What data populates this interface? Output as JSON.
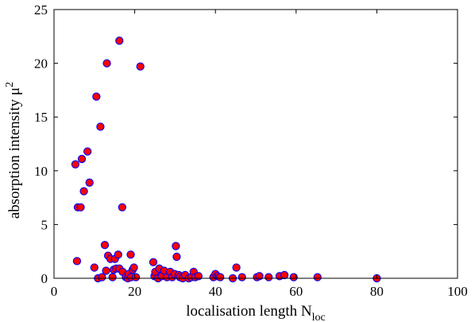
{
  "chart_data": {
    "type": "scatter",
    "title": "",
    "xlabel": "localisation length  N",
    "xlabel_sub": "loc",
    "ylabel": "absorption intensity  μ",
    "ylabel_sup": "2",
    "xlim": [
      0,
      100
    ],
    "ylim": [
      0,
      25
    ],
    "xticks": [
      0,
      20,
      40,
      60,
      80,
      100
    ],
    "yticks": [
      0,
      5,
      10,
      15,
      20,
      25
    ],
    "grid": false,
    "legend": "none",
    "marker": {
      "fill": "#ff0000",
      "edge": "#0000ff"
    },
    "points": [
      [
        5.3,
        10.6
      ],
      [
        5.7,
        1.6
      ],
      [
        5.9,
        6.6
      ],
      [
        6.6,
        6.6
      ],
      [
        6.9,
        11.1
      ],
      [
        7.4,
        8.1
      ],
      [
        8.3,
        11.8
      ],
      [
        8.8,
        8.9
      ],
      [
        10.0,
        1.0
      ],
      [
        10.5,
        16.9
      ],
      [
        10.9,
        0.0
      ],
      [
        11.5,
        14.1
      ],
      [
        11.9,
        0.1
      ],
      [
        12.6,
        3.1
      ],
      [
        12.9,
        0.7
      ],
      [
        13.1,
        20.0
      ],
      [
        13.4,
        2.1
      ],
      [
        14.0,
        1.8
      ],
      [
        14.5,
        0.1
      ],
      [
        14.8,
        0.8
      ],
      [
        15.1,
        1.8
      ],
      [
        15.4,
        0.9
      ],
      [
        15.9,
        2.2
      ],
      [
        16.2,
        0.9
      ],
      [
        16.2,
        22.1
      ],
      [
        16.9,
        6.6
      ],
      [
        17.0,
        0.6
      ],
      [
        17.8,
        0.1
      ],
      [
        18.3,
        0.0
      ],
      [
        18.5,
        0.4
      ],
      [
        19.0,
        2.2
      ],
      [
        19.1,
        0.1
      ],
      [
        19.5,
        0.8
      ],
      [
        19.8,
        1.0
      ],
      [
        20.3,
        0.1
      ],
      [
        21.4,
        19.7
      ],
      [
        24.6,
        1.5
      ],
      [
        24.9,
        0.2
      ],
      [
        25.1,
        0.6
      ],
      [
        25.8,
        0.0
      ],
      [
        26.1,
        0.9
      ],
      [
        26.7,
        0.2
      ],
      [
        27.3,
        0.7
      ],
      [
        28.0,
        0.1
      ],
      [
        28.8,
        0.6
      ],
      [
        29.3,
        0.1
      ],
      [
        29.9,
        0.4
      ],
      [
        30.2,
        3.0
      ],
      [
        30.4,
        2.0
      ],
      [
        30.9,
        0.3
      ],
      [
        31.2,
        0.1
      ],
      [
        31.9,
        0.0
      ],
      [
        32.5,
        0.3
      ],
      [
        33.4,
        0.0
      ],
      [
        34.0,
        0.1
      ],
      [
        34.6,
        0.6
      ],
      [
        35.0,
        0.1
      ],
      [
        35.8,
        0.2
      ],
      [
        39.5,
        0.1
      ],
      [
        40.0,
        0.4
      ],
      [
        40.5,
        0.2
      ],
      [
        41.2,
        0.1
      ],
      [
        44.3,
        0.0
      ],
      [
        45.2,
        1.0
      ],
      [
        46.6,
        0.1
      ],
      [
        50.3,
        0.1
      ],
      [
        50.9,
        0.2
      ],
      [
        53.2,
        0.1
      ],
      [
        55.9,
        0.2
      ],
      [
        57.1,
        0.3
      ],
      [
        59.4,
        0.1
      ],
      [
        65.3,
        0.1
      ],
      [
        80.0,
        0.0
      ]
    ]
  }
}
